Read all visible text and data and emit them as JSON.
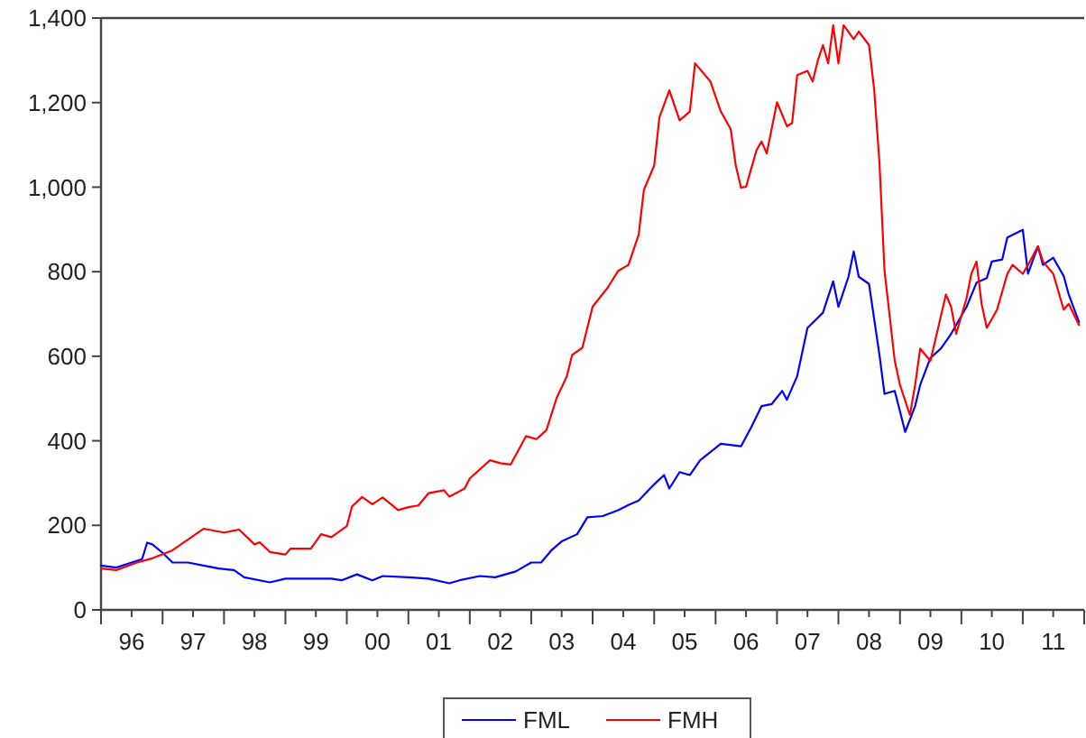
{
  "chart_data": {
    "type": "line",
    "xlim": [
      "1996-01",
      "2012-01"
    ],
    "ylim": [
      0,
      1400
    ],
    "yticks": [
      0,
      200,
      400,
      600,
      800,
      {
        "value": 1000,
        "label": "1,000"
      },
      {
        "value": 1200,
        "label": "1,200"
      },
      {
        "value": 1400,
        "label": "1,400"
      }
    ],
    "xticks": [
      {
        "value": "1996-01",
        "label": null
      },
      {
        "value": "1996-07",
        "label": "96"
      },
      {
        "value": "1997-01",
        "label": null
      },
      {
        "value": "1997-07",
        "label": "97"
      },
      {
        "value": "1998-01",
        "label": null
      },
      {
        "value": "1998-07",
        "label": "98"
      },
      {
        "value": "1999-01",
        "label": null
      },
      {
        "value": "1999-07",
        "label": "99"
      },
      {
        "value": "2000-01",
        "label": null
      },
      {
        "value": "2000-07",
        "label": "00"
      },
      {
        "value": "2001-01",
        "label": null
      },
      {
        "value": "2001-07",
        "label": "01"
      },
      {
        "value": "2002-01",
        "label": null
      },
      {
        "value": "2002-07",
        "label": "02"
      },
      {
        "value": "2003-01",
        "label": null
      },
      {
        "value": "2003-07",
        "label": "03"
      },
      {
        "value": "2004-01",
        "label": null
      },
      {
        "value": "2004-07",
        "label": "04"
      },
      {
        "value": "2005-01",
        "label": null
      },
      {
        "value": "2005-07",
        "label": "05"
      },
      {
        "value": "2006-01",
        "label": null
      },
      {
        "value": "2006-07",
        "label": "06"
      },
      {
        "value": "2007-01",
        "label": null
      },
      {
        "value": "2007-07",
        "label": "07"
      },
      {
        "value": "2008-01",
        "label": null
      },
      {
        "value": "2008-07",
        "label": "08"
      },
      {
        "value": "2009-01",
        "label": null
      },
      {
        "value": "2009-07",
        "label": "09"
      },
      {
        "value": "2010-01",
        "label": null
      },
      {
        "value": "2010-07",
        "label": "10"
      },
      {
        "value": "2011-01",
        "label": null
      },
      {
        "value": "2011-07",
        "label": "11"
      },
      {
        "value": "2012-01",
        "label": null
      }
    ],
    "grid": false,
    "legend": "bottom",
    "marker": "none",
    "line_style": "solid",
    "series": [
      {
        "name": "FML",
        "color": "#0000ff",
        "x": [
          "1996-01",
          "1996-04",
          "1996-07",
          "1996-09",
          "1996-10",
          "1996-11",
          "1997-01",
          "1997-03",
          "1997-06",
          "1997-09",
          "1997-12",
          "1998-03",
          "1998-05",
          "1998-10",
          "1999-01",
          "1999-06",
          "1999-10",
          "1999-12",
          "2000-03",
          "2000-06",
          "2000-08",
          "2001-01",
          "2001-05",
          "2001-09",
          "2001-11",
          "2002-03",
          "2002-06",
          "2002-10",
          "2003-01",
          "2003-03",
          "2003-05",
          "2003-07",
          "2003-10",
          "2003-12",
          "2004-03",
          "2004-06",
          "2004-08",
          "2004-10",
          "2005-01",
          "2005-03",
          "2005-04",
          "2005-06",
          "2005-08",
          "2005-10",
          "2005-12",
          "2006-02",
          "2006-06",
          "2006-08",
          "2006-10",
          "2006-12",
          "2007-02",
          "2007-03",
          "2007-05",
          "2007-07",
          "2007-10",
          "2007-12",
          "2008-01",
          "2008-03",
          "2008-04",
          "2008-05",
          "2008-07",
          "2008-09",
          "2008-10",
          "2008-12",
          "2009-02",
          "2009-04",
          "2009-05",
          "2009-07",
          "2009-09",
          "2009-11",
          "2010-02",
          "2010-04",
          "2010-06",
          "2010-07",
          "2010-09",
          "2010-10",
          "2011-01",
          "2011-02",
          "2011-04",
          "2011-05",
          "2011-07",
          "2011-09",
          "2011-10",
          "2011-12"
        ],
        "values": [
          105,
          100,
          112,
          120,
          159,
          155,
          135,
          112,
          112,
          105,
          98,
          94,
          77,
          65,
          74,
          74,
          74,
          70,
          84,
          70,
          80,
          77,
          74,
          63,
          70,
          80,
          77,
          91,
          112,
          112,
          141,
          162,
          179,
          219,
          222,
          236,
          248,
          259,
          297,
          319,
          287,
          326,
          319,
          354,
          373,
          393,
          387,
          432,
          482,
          487,
          518,
          497,
          553,
          667,
          703,
          777,
          717,
          788,
          848,
          788,
          771,
          603,
          511,
          518,
          421,
          482,
          532,
          596,
          618,
          653,
          717,
          774,
          785,
          824,
          829,
          881,
          899,
          795,
          860,
          816,
          833,
          790,
          746,
          681
        ]
      },
      {
        "name": "FMH",
        "color": "#ff0000",
        "x": [
          "1996-01",
          "1996-04",
          "1996-08",
          "1996-11",
          "1997-03",
          "1997-09",
          "1998-01",
          "1998-04",
          "1998-07",
          "1998-08",
          "1998-10",
          "1999-01",
          "1999-02",
          "1999-06",
          "1999-08",
          "1999-10",
          "2000-01",
          "2000-02",
          "2000-04",
          "2000-06",
          "2000-08",
          "2000-11",
          "2001-01",
          "2001-03",
          "2001-05",
          "2001-08",
          "2001-09",
          "2001-12",
          "2002-01",
          "2002-05",
          "2002-07",
          "2002-09",
          "2002-12",
          "2003-02",
          "2003-04",
          "2003-06",
          "2003-08",
          "2003-09",
          "2003-11",
          "2004-01",
          "2004-04",
          "2004-06",
          "2004-08",
          "2004-10",
          "2004-11",
          "2005-01",
          "2005-02",
          "2005-04",
          "2005-06",
          "2005-08",
          "2005-09",
          "2005-12",
          "2006-02",
          "2006-04",
          "2006-05",
          "2006-06",
          "2006-07",
          "2006-09",
          "2006-10",
          "2006-11",
          "2007-01",
          "2007-03",
          "2007-04",
          "2007-05",
          "2007-07",
          "2007-08",
          "2007-09",
          "2007-10",
          "2007-11",
          "2007-12",
          "2008-01",
          "2008-02",
          "2008-04",
          "2008-05",
          "2008-07",
          "2008-08",
          "2008-09",
          "2008-10",
          "2008-12",
          "2009-01",
          "2009-03",
          "2009-04",
          "2009-05",
          "2009-07",
          "2009-10",
          "2009-11",
          "2009-12",
          "2010-02",
          "2010-03",
          "2010-04",
          "2010-05",
          "2010-06",
          "2010-08",
          "2010-10",
          "2010-11",
          "2011-01",
          "2011-02",
          "2011-04",
          "2011-05",
          "2011-07",
          "2011-09",
          "2011-10",
          "2011-12"
        ],
        "values": [
          98,
          94,
          112,
          122,
          141,
          192,
          183,
          190,
          155,
          160,
          137,
          131,
          145,
          145,
          179,
          172,
          198,
          245,
          267,
          250,
          266,
          236,
          243,
          247,
          276,
          283,
          268,
          287,
          311,
          354,
          347,
          344,
          411,
          404,
          425,
          501,
          553,
          603,
          620,
          717,
          763,
          802,
          816,
          888,
          994,
          1051,
          1165,
          1229,
          1158,
          1179,
          1293,
          1250,
          1179,
          1137,
          1051,
          999,
          1001,
          1087,
          1108,
          1080,
          1201,
          1144,
          1152,
          1265,
          1275,
          1250,
          1300,
          1336,
          1293,
          1383,
          1293,
          1383,
          1350,
          1368,
          1336,
          1229,
          1058,
          802,
          589,
          532,
          461,
          532,
          618,
          589,
          746,
          717,
          653,
          738,
          795,
          824,
          724,
          667,
          710,
          795,
          816,
          795,
          816,
          860,
          824,
          795,
          710,
          724,
          674
        ]
      }
    ]
  }
}
